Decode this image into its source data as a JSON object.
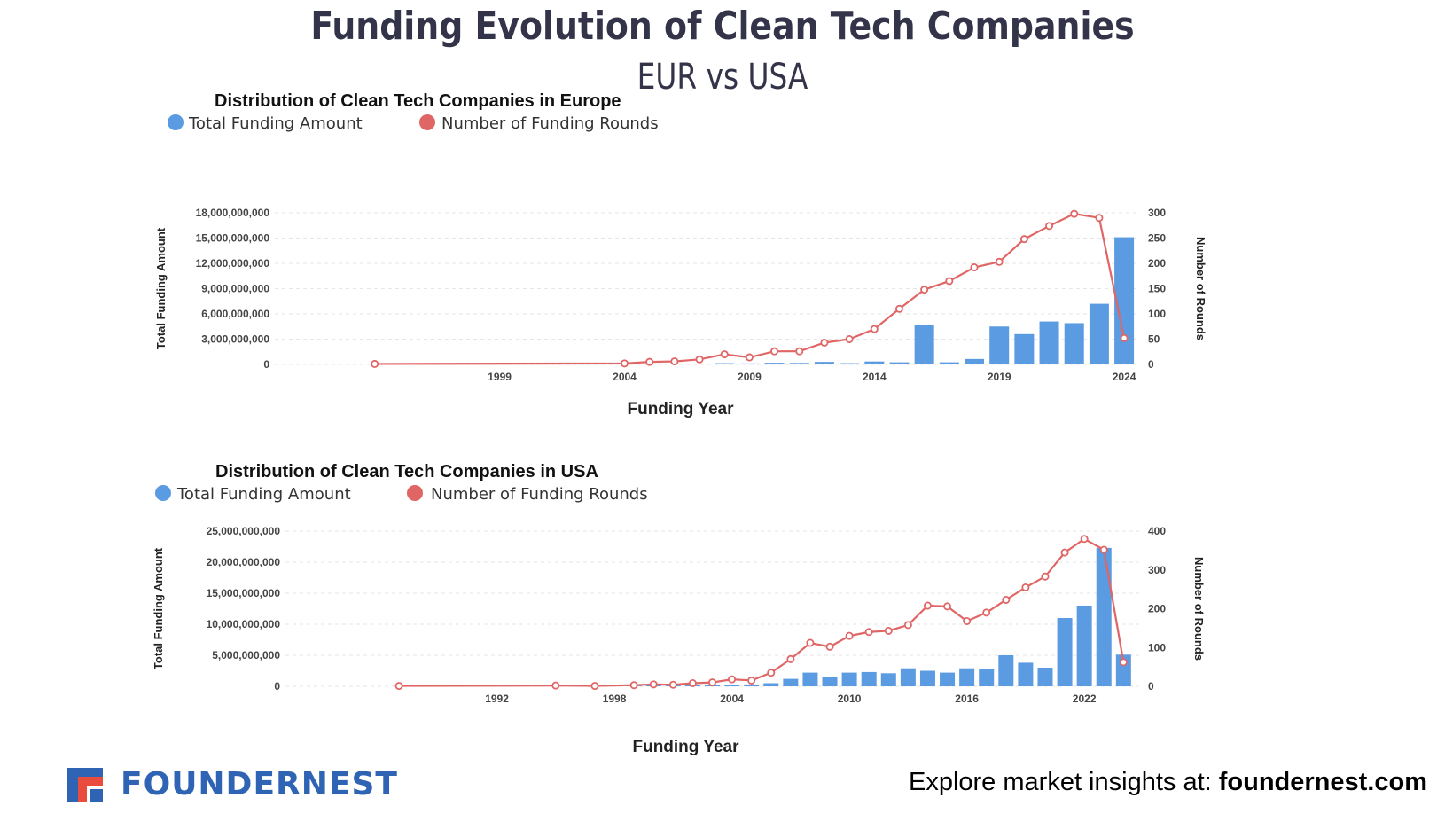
{
  "header": {
    "title": "Funding Evolution of Clean Tech Companies",
    "subtitle": "EUR vs USA"
  },
  "footer": {
    "brand": "FOUNDERNEST",
    "cta_prefix": "Explore market insights at: ",
    "cta_link": "foundernest.com"
  },
  "colors": {
    "bar": "#5b9be1",
    "line": "#e06666",
    "grid": "#e6e6e6",
    "text": "#1f1f2e",
    "brand_blue": "#2f63b3",
    "brand_red": "#e94c3d"
  },
  "chart_data": [
    {
      "type": "bar+line",
      "title": "Distribution of Clean Tech Companies in Europe",
      "legend": [
        "Total Funding Amount",
        "Number of Funding Rounds"
      ],
      "xlabel": "Funding Year",
      "ylabel_left": "Total Funding Amount",
      "ylabel_right": "Number of Rounds",
      "x_range": [
        1994,
        2024
      ],
      "x_ticks": [
        1999,
        2004,
        2009,
        2014,
        2019,
        2024
      ],
      "ylim_left": [
        0,
        18000000000
      ],
      "yticks_left": [
        0,
        3000000000,
        6000000000,
        9000000000,
        12000000000,
        15000000000,
        18000000000
      ],
      "ytick_labels_left": [
        "0",
        "3,000,000,000",
        "6,000,000,000",
        "9,000,000,000",
        "12,000,000,000",
        "15,000,000,000",
        "18,000,000,000"
      ],
      "ylim_right": [
        0,
        300
      ],
      "yticks_right": [
        0,
        50,
        100,
        150,
        200,
        250,
        300
      ],
      "bars": {
        "x": [
          2004,
          2005,
          2006,
          2007,
          2008,
          2009,
          2010,
          2011,
          2012,
          2013,
          2014,
          2015,
          2016,
          2017,
          2018,
          2019,
          2020,
          2021,
          2022,
          2023,
          2024
        ],
        "values": [
          20000000,
          80000000,
          60000000,
          100000000,
          150000000,
          120000000,
          200000000,
          180000000,
          300000000,
          150000000,
          350000000,
          250000000,
          4700000000,
          250000000,
          650000000,
          4500000000,
          3600000000,
          5100000000,
          4900000000,
          7200000000,
          15100000000
        ]
      },
      "line": {
        "x": [
          1994,
          2004,
          2005,
          2006,
          2007,
          2008,
          2009,
          2010,
          2011,
          2012,
          2013,
          2014,
          2015,
          2016,
          2017,
          2018,
          2019,
          2020,
          2021,
          2022,
          2023,
          2024
        ],
        "values": [
          1,
          2,
          5,
          6,
          10,
          20,
          14,
          26,
          26,
          43,
          50,
          70,
          110,
          148,
          165,
          192,
          203,
          248,
          274,
          298,
          290,
          52
        ]
      }
    },
    {
      "type": "bar+line",
      "title": "Distribution of Clean Tech Companies in USA",
      "legend": [
        "Total Funding Amount",
        "Number of Funding Rounds"
      ],
      "xlabel": "Funding Year",
      "ylabel_left": "Total Funding Amount",
      "ylabel_right": "Number of Rounds",
      "x_range": [
        1987,
        2024
      ],
      "x_ticks": [
        1992,
        1998,
        2004,
        2010,
        2016,
        2022
      ],
      "ylim_left": [
        0,
        25000000000
      ],
      "yticks_left": [
        0,
        5000000000,
        10000000000,
        15000000000,
        20000000000,
        25000000000
      ],
      "ytick_labels_left": [
        "0",
        "5,000,000,000",
        "10,000,000,000",
        "15,000,000,000",
        "20,000,000,000",
        "25,000,000,000"
      ],
      "ylim_right": [
        0,
        400
      ],
      "yticks_right": [
        0,
        100,
        200,
        300,
        400
      ],
      "bars": {
        "x": [
          1999,
          2000,
          2001,
          2002,
          2003,
          2004,
          2005,
          2006,
          2007,
          2008,
          2009,
          2010,
          2011,
          2012,
          2013,
          2014,
          2015,
          2016,
          2017,
          2018,
          2019,
          2020,
          2021,
          2022,
          2023,
          2024
        ],
        "values": [
          30000000,
          50000000,
          40000000,
          80000000,
          100000000,
          200000000,
          300000000,
          500000000,
          1200000000,
          2200000000,
          1500000000,
          2200000000,
          2300000000,
          2100000000,
          2900000000,
          2500000000,
          2200000000,
          2900000000,
          2800000000,
          5000000000,
          3800000000,
          3000000000,
          11000000000,
          13000000000,
          22300000000,
          5100000000
        ]
      },
      "line": {
        "x": [
          1987,
          1995,
          1997,
          1999,
          2000,
          2001,
          2002,
          2003,
          2004,
          2005,
          2006,
          2007,
          2008,
          2009,
          2010,
          2011,
          2012,
          2013,
          2014,
          2015,
          2016,
          2017,
          2018,
          2019,
          2020,
          2021,
          2022,
          2023,
          2024
        ],
        "values": [
          1,
          2,
          1,
          3,
          5,
          4,
          8,
          10,
          18,
          15,
          35,
          70,
          112,
          102,
          130,
          140,
          143,
          158,
          208,
          206,
          168,
          190,
          223,
          255,
          283,
          345,
          380,
          352,
          62
        ]
      }
    }
  ]
}
